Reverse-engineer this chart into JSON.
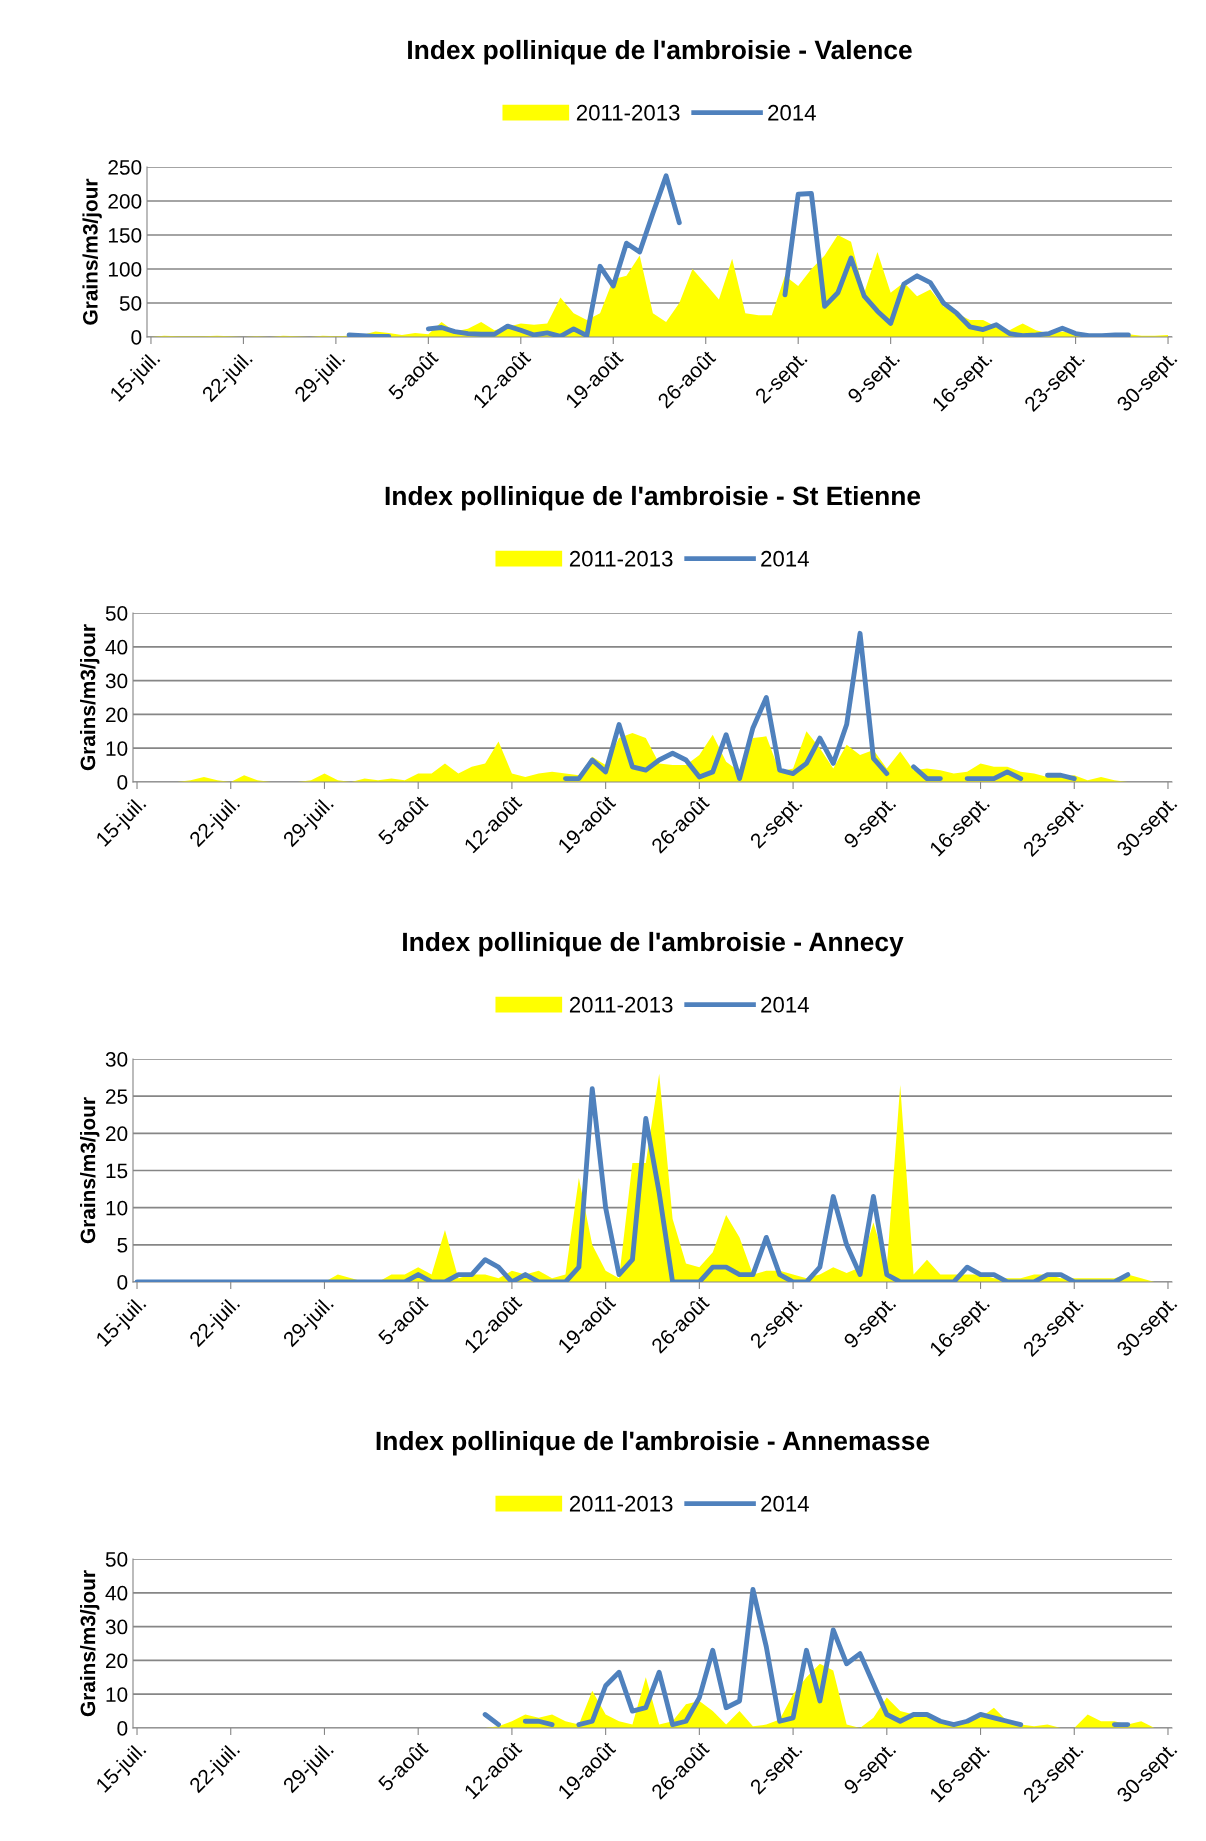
{
  "chart_data": [
    {
      "type": "area",
      "title": "Index pollinique de l'ambroisie - Valence",
      "ylabel": "Grains/m3/jour",
      "categories": [
        "15-juil.",
        null,
        null,
        null,
        null,
        null,
        null,
        "22-juil.",
        null,
        null,
        null,
        null,
        null,
        null,
        "29-juil.",
        null,
        null,
        null,
        null,
        null,
        null,
        "5-août",
        null,
        null,
        null,
        null,
        null,
        null,
        "12-août",
        null,
        null,
        null,
        null,
        null,
        null,
        "19-août",
        null,
        null,
        null,
        null,
        null,
        null,
        "26-août",
        null,
        null,
        null,
        null,
        null,
        null,
        "2-sept.",
        null,
        null,
        null,
        null,
        null,
        null,
        "9-sept.",
        null,
        null,
        null,
        null,
        null,
        null,
        "16-sept.",
        null,
        null,
        null,
        null,
        null,
        null,
        "23-sept.",
        null,
        null,
        null,
        null,
        null,
        null,
        "30-sept."
      ],
      "ylim": [
        0,
        250
      ],
      "yticks": [
        0,
        50,
        100,
        150,
        200,
        250
      ],
      "grid": "y",
      "legend": "top",
      "series": [
        {
          "name": "2011-2013",
          "color": "#ffff00",
          "values": [
            0,
            2,
            1,
            1,
            1,
            2,
            1,
            0,
            1,
            0,
            2,
            1,
            0,
            2,
            1,
            2,
            3,
            8,
            6,
            3,
            6,
            4,
            22,
            8,
            12,
            22,
            10,
            15,
            20,
            18,
            20,
            58,
            35,
            25,
            35,
            85,
            90,
            120,
            35,
            22,
            50,
            100,
            78,
            55,
            115,
            35,
            32,
            32,
            90,
            75,
            100,
            120,
            150,
            140,
            65,
            125,
            65,
            80,
            60,
            70,
            45,
            35,
            25,
            25,
            15,
            10,
            20,
            10,
            5,
            8,
            5,
            4,
            3,
            2,
            4,
            2,
            2,
            3
          ]
        },
        {
          "name": "2014",
          "type": "line",
          "color": "#4f81bd",
          "values": [
            null,
            null,
            null,
            null,
            null,
            null,
            null,
            null,
            null,
            null,
            null,
            null,
            null,
            null,
            null,
            3,
            2,
            1,
            1,
            null,
            null,
            12,
            14,
            8,
            5,
            4,
            4,
            16,
            10,
            3,
            6,
            1,
            12,
            2,
            104,
            75,
            138,
            125,
            182,
            237,
            168,
            null,
            null,
            null,
            null,
            null,
            null,
            null,
            62,
            210,
            211,
            45,
            65,
            116,
            60,
            38,
            20,
            78,
            90,
            80,
            50,
            35,
            15,
            11,
            18,
            5,
            2,
            3,
            5,
            13,
            5,
            2,
            2,
            3,
            3,
            null,
            null,
            null
          ]
        }
      ]
    },
    {
      "type": "area",
      "title": "Index pollinique de l'ambroisie - St Etienne",
      "ylabel": "Grains/m3/jour",
      "categories": [
        "15-juil.",
        null,
        null,
        null,
        null,
        null,
        null,
        "22-juil.",
        null,
        null,
        null,
        null,
        null,
        null,
        "29-juil.",
        null,
        null,
        null,
        null,
        null,
        null,
        "5-août",
        null,
        null,
        null,
        null,
        null,
        null,
        "12-août",
        null,
        null,
        null,
        null,
        null,
        null,
        "19-août",
        null,
        null,
        null,
        null,
        null,
        null,
        "26-août",
        null,
        null,
        null,
        null,
        null,
        null,
        "2-sept.",
        null,
        null,
        null,
        null,
        null,
        null,
        "9-sept.",
        null,
        null,
        null,
        null,
        null,
        null,
        "16-sept.",
        null,
        null,
        null,
        null,
        null,
        null,
        "23-sept.",
        null,
        null,
        null,
        null,
        null,
        null,
        "30-sept."
      ],
      "ylim": [
        0,
        50
      ],
      "yticks": [
        0,
        10,
        20,
        30,
        40,
        50
      ],
      "grid": "y",
      "legend": "top",
      "series": [
        {
          "name": "2011-2013",
          "color": "#ffff00",
          "values": [
            0,
            0,
            0,
            0,
            0.5,
            1.5,
            0.5,
            0,
            2,
            0.5,
            0,
            0,
            0,
            0.5,
            2.5,
            0.5,
            0,
            1,
            0.5,
            1,
            0.5,
            2.5,
            2.5,
            5.5,
            2.5,
            4.5,
            5.5,
            12,
            2.5,
            1.5,
            2.5,
            3,
            2.5,
            2,
            7.5,
            5,
            13,
            14.5,
            13,
            5.5,
            5,
            5,
            8,
            14,
            6,
            3,
            13,
            13.5,
            3,
            4,
            15,
            10,
            4,
            11,
            8,
            9.5,
            4,
            9,
            3.5,
            4,
            3.5,
            2.5,
            3,
            5.5,
            4.5,
            4.5,
            3,
            2.5,
            1.5,
            1.5,
            2,
            0.5,
            1.5,
            0.5,
            0,
            0,
            0,
            0
          ]
        },
        {
          "name": "2014",
          "type": "line",
          "color": "#4f81bd",
          "values": [
            null,
            null,
            null,
            null,
            null,
            null,
            null,
            null,
            null,
            null,
            null,
            null,
            null,
            null,
            null,
            null,
            null,
            null,
            null,
            null,
            null,
            null,
            null,
            null,
            null,
            null,
            null,
            null,
            null,
            null,
            null,
            null,
            1,
            1,
            6.5,
            3,
            17,
            4.5,
            3.5,
            6.5,
            8.5,
            6.5,
            1.5,
            3,
            14,
            1,
            16,
            25,
            3.5,
            2.5,
            5.5,
            13,
            5.5,
            17,
            44,
            7,
            2.5,
            null,
            4.5,
            1,
            1,
            null,
            1,
            1,
            1,
            3,
            1,
            null,
            2,
            2,
            1,
            null,
            null,
            null,
            null,
            null,
            null,
            null
          ]
        }
      ]
    },
    {
      "type": "area",
      "title": "Index pollinique de l'ambroisie - Annecy",
      "ylabel": "Grains/m3/jour",
      "categories": [
        "15-juil.",
        null,
        null,
        null,
        null,
        null,
        null,
        "22-juil.",
        null,
        null,
        null,
        null,
        null,
        null,
        "29-juil.",
        null,
        null,
        null,
        null,
        null,
        null,
        "5-août",
        null,
        null,
        null,
        null,
        null,
        null,
        "12-août",
        null,
        null,
        null,
        null,
        null,
        null,
        "19-août",
        null,
        null,
        null,
        null,
        null,
        null,
        "26-août",
        null,
        null,
        null,
        null,
        null,
        null,
        "2-sept.",
        null,
        null,
        null,
        null,
        null,
        null,
        "9-sept.",
        null,
        null,
        null,
        null,
        null,
        null,
        "16-sept.",
        null,
        null,
        null,
        null,
        null,
        null,
        "23-sept.",
        null,
        null,
        null,
        null,
        null,
        null,
        "30-sept."
      ],
      "ylim": [
        0,
        30
      ],
      "yticks": [
        0,
        5,
        10,
        15,
        20,
        25,
        30
      ],
      "grid": "y",
      "legend": "top",
      "series": [
        {
          "name": "2011-2013",
          "color": "#ffff00",
          "values": [
            0,
            0,
            0,
            0,
            0,
            0,
            0,
            0,
            0,
            0,
            0,
            0,
            0,
            0,
            0,
            1,
            0.5,
            0,
            0,
            1,
            1,
            2,
            1,
            7,
            0.5,
            1,
            1,
            0.5,
            1.5,
            1,
            1.5,
            0.5,
            1,
            14,
            5,
            1.5,
            0.5,
            16,
            16,
            28,
            8.5,
            2.5,
            2,
            4,
            9,
            6,
            1,
            1.5,
            1.5,
            1,
            0.5,
            1,
            2,
            1.2,
            2,
            8,
            2,
            26.5,
            1,
            3,
            1,
            1,
            1,
            1,
            0.5,
            0.5,
            0.5,
            1,
            1,
            0.5,
            0.5,
            0.5,
            0.5,
            0.5,
            1,
            0.5,
            0,
            0
          ]
        },
        {
          "name": "2014",
          "type": "line",
          "color": "#4f81bd",
          "values": [
            0,
            0,
            0,
            0,
            0,
            0,
            0,
            0,
            0,
            0,
            0,
            0,
            0,
            0,
            0,
            0,
            0,
            0,
            0,
            0,
            0,
            1,
            0,
            0,
            1,
            1,
            3,
            2,
            0,
            1,
            0,
            0,
            0,
            2,
            26,
            10,
            1,
            3,
            22,
            12,
            0,
            0,
            0,
            2,
            2,
            1,
            1,
            6,
            1,
            0,
            0,
            2,
            11.5,
            5,
            1,
            11.5,
            1,
            0,
            0,
            0,
            0,
            0,
            2,
            1,
            1,
            0,
            0,
            0,
            1,
            1,
            0,
            0,
            0,
            0,
            1,
            null,
            null,
            null
          ]
        }
      ]
    },
    {
      "type": "area",
      "title": "Index pollinique de l'ambroisie - Annemasse",
      "ylabel": "Grains/m3/jour",
      "categories": [
        "15-juil.",
        null,
        null,
        null,
        null,
        null,
        null,
        "22-juil.",
        null,
        null,
        null,
        null,
        null,
        null,
        "29-juil.",
        null,
        null,
        null,
        null,
        null,
        null,
        "5-août",
        null,
        null,
        null,
        null,
        null,
        null,
        "12-août",
        null,
        null,
        null,
        null,
        null,
        null,
        "19-août",
        null,
        null,
        null,
        null,
        null,
        null,
        "26-août",
        null,
        null,
        null,
        null,
        null,
        null,
        "2-sept.",
        null,
        null,
        null,
        null,
        null,
        null,
        "9-sept.",
        null,
        null,
        null,
        null,
        null,
        null,
        "16-sept.",
        null,
        null,
        null,
        null,
        null,
        null,
        "23-sept.",
        null,
        null,
        null,
        null,
        null,
        null,
        "30-sept."
      ],
      "ylim": [
        0,
        50
      ],
      "yticks": [
        0,
        10,
        20,
        30,
        40,
        50
      ],
      "grid": "y",
      "legend": "top",
      "series": [
        {
          "name": "2011-2013",
          "color": "#ffff00",
          "values": [
            0,
            0,
            0,
            0,
            0,
            0,
            0,
            0,
            0,
            0,
            0,
            0,
            0,
            0,
            0,
            0,
            0,
            0,
            0,
            0,
            0,
            0,
            0,
            0,
            0,
            0,
            0,
            0.5,
            2,
            4,
            3,
            4,
            2,
            1,
            11,
            4,
            2,
            1,
            15,
            1,
            2,
            7,
            8,
            5,
            1,
            5,
            0.5,
            1,
            2.5,
            10,
            15,
            19,
            17,
            1,
            0,
            3,
            9,
            5,
            4,
            4,
            2,
            1.5,
            2,
            3,
            6,
            2,
            1,
            0.5,
            1,
            0,
            0,
            4,
            2,
            2,
            1,
            2,
            0,
            0
          ]
        },
        {
          "name": "2014",
          "type": "line",
          "color": "#4f81bd",
          "values": [
            null,
            null,
            null,
            null,
            null,
            null,
            null,
            null,
            null,
            null,
            null,
            null,
            null,
            null,
            null,
            null,
            null,
            null,
            null,
            null,
            null,
            null,
            null,
            null,
            null,
            null,
            4,
            1,
            null,
            2,
            2,
            1,
            null,
            1,
            2,
            12.5,
            16.5,
            5,
            6,
            16.5,
            1,
            2,
            9,
            23,
            6,
            8,
            41,
            24,
            2,
            3,
            23,
            8,
            29,
            19,
            22,
            13,
            4,
            2,
            4,
            4,
            2,
            1,
            2,
            4,
            3,
            2,
            1,
            null,
            null,
            null,
            null,
            null,
            null,
            1,
            1,
            null,
            null,
            null
          ]
        }
      ]
    }
  ]
}
